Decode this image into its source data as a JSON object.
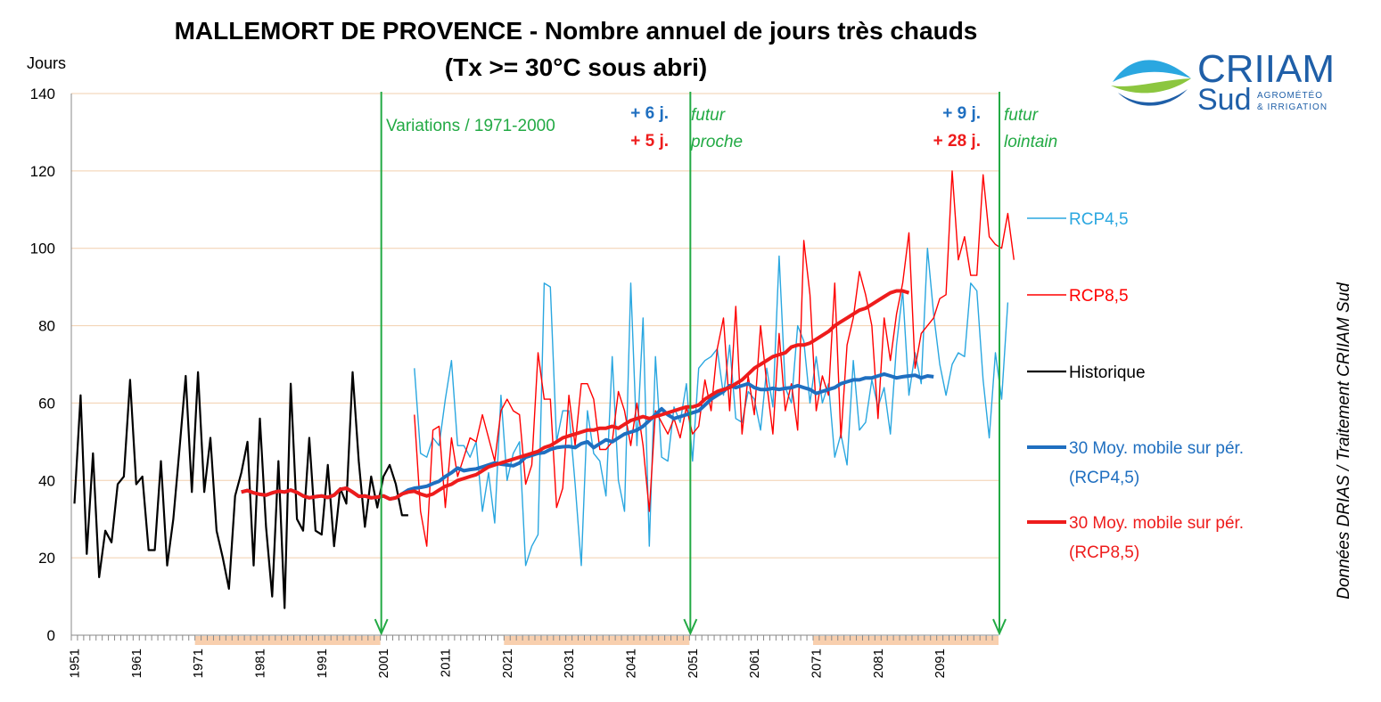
{
  "chart_data": {
    "type": "line",
    "title": "MALLEMORT DE PROVENCE - Nombre annuel de jours très chauds",
    "subtitle": "(Tx >= 30°C sous abri)",
    "ylabel": "Jours",
    "ylim": [
      0,
      140
    ],
    "yticks": [
      0,
      20,
      40,
      60,
      80,
      100,
      120,
      140
    ],
    "xlim": [
      1950.5,
      2100.5
    ],
    "xticks": [
      1951,
      1961,
      1971,
      1981,
      1991,
      2001,
      2011,
      2021,
      2031,
      2041,
      2051,
      2061,
      2071,
      2081,
      2091
    ],
    "grid": "horizontal",
    "legend_position": "right",
    "reference_periods": [
      [
        1971,
        2000
      ],
      [
        2021,
        2050
      ],
      [
        2071,
        2100
      ]
    ],
    "period_markers": [
      2001,
      2051,
      2101
    ],
    "series": [
      {
        "name": "Historique",
        "color": "#000000",
        "width": 2.2,
        "x_start": 1951,
        "values": [
          34,
          62,
          21,
          47,
          15,
          27,
          24,
          39,
          41,
          66,
          39,
          41,
          22,
          22,
          45,
          18,
          30,
          48,
          67,
          37,
          68,
          37,
          51,
          27,
          20,
          12,
          36,
          42,
          50,
          18,
          56,
          28,
          10,
          45,
          7,
          65,
          30,
          27,
          51,
          27,
          26,
          44,
          23,
          38,
          34,
          68,
          45,
          28,
          41,
          33,
          41,
          44,
          39,
          31,
          31
        ]
      },
      {
        "name": "RCP4,5",
        "color": "#2aa7e0",
        "width": 1.4,
        "x_start": 2006,
        "values": [
          69,
          47,
          46,
          51,
          49,
          61,
          71,
          49,
          49,
          46,
          50,
          32,
          42,
          29,
          62,
          40,
          47,
          50,
          18,
          23,
          26,
          91,
          90,
          50,
          58,
          58,
          39,
          18,
          58,
          47,
          45,
          36,
          72,
          40,
          32,
          91,
          49,
          82,
          23,
          72,
          46,
          45,
          59,
          55,
          65,
          45,
          69,
          71,
          72,
          74,
          62,
          75,
          56,
          55,
          63,
          61,
          53,
          69,
          59,
          98,
          64,
          60,
          80,
          76,
          60,
          72,
          60,
          65,
          46,
          52,
          44,
          71,
          53,
          55,
          66,
          59,
          64,
          52,
          75,
          89,
          62,
          73,
          65,
          100,
          83,
          70,
          62,
          70,
          73,
          72,
          91,
          89,
          66,
          51,
          73,
          61,
          86
        ]
      },
      {
        "name": "RCP8,5",
        "color": "#ff0000",
        "width": 1.4,
        "x_start": 2006,
        "values": [
          57,
          32,
          23,
          53,
          54,
          33,
          51,
          41,
          46,
          51,
          50,
          57,
          51,
          45,
          58,
          61,
          58,
          57,
          39,
          44,
          73,
          61,
          61,
          33,
          38,
          62,
          49,
          65,
          65,
          61,
          48,
          48,
          50,
          63,
          58,
          49,
          60,
          49,
          32,
          58,
          55,
          52,
          56,
          51,
          59,
          52,
          54,
          66,
          58,
          74,
          82,
          58,
          85,
          52,
          67,
          57,
          80,
          65,
          52,
          78,
          58,
          65,
          53,
          102,
          88,
          58,
          67,
          62,
          91,
          51,
          75,
          82,
          94,
          88,
          80,
          56,
          82,
          71,
          83,
          91,
          104,
          69,
          78,
          80,
          82,
          87,
          88,
          120,
          97,
          103,
          93,
          93,
          119,
          103,
          101,
          100,
          109,
          97
        ]
      },
      {
        "name": "30 Moy. mobile sur pér. (RCP4,5)",
        "color": "#1f6fc0",
        "width": 4,
        "x_start": 1978,
        "values": [
          37,
          37.4,
          36.8,
          36.4,
          36.2,
          36.8,
          37.2,
          37.0,
          37.5,
          36.9,
          36.0,
          35.5,
          35.8,
          36.0,
          35.6,
          36.2,
          37.7,
          38.0,
          37.0,
          35.9,
          36.0,
          35.5,
          35.7,
          36.0,
          35.2,
          35.5,
          36.5,
          37.5,
          38.0,
          38.2,
          38.5,
          39.2,
          39.8,
          41.0,
          42.0,
          43.2,
          42.5,
          42.8,
          43.0,
          43.5,
          44.0,
          44.5,
          44.2,
          44.0,
          43.8,
          44.5,
          46.0,
          46.5,
          47.0,
          47.2,
          48.0,
          48.5,
          48.7,
          48.8,
          48.5,
          49.5,
          50.0,
          48.5,
          49.5,
          50.5,
          50.0,
          51.0,
          52.0,
          52.5,
          53.0,
          54.0,
          55.5,
          57.0,
          58.5,
          57.0,
          56.0,
          56.5,
          57.0,
          57.5,
          58.0,
          59.5,
          61.0,
          62.0,
          63.0,
          64.5,
          64.0,
          64.5,
          65.0,
          64.0,
          63.5,
          63.5,
          63.8,
          63.5,
          63.8,
          64.0,
          64.5,
          64.0,
          63.5,
          62.5,
          63.0,
          63.5,
          64.0,
          65.0,
          65.5,
          66.0,
          66.0,
          66.5,
          66.5,
          67.0,
          67.5,
          67.0,
          66.5,
          66.8,
          67.0,
          67.2,
          66.5,
          67.0,
          66.8
        ]
      },
      {
        "name": "30 Moy. mobile sur pér. (RCP8,5)",
        "color": "#ee1c1c",
        "width": 4,
        "x_start": 1978,
        "values": [
          37,
          37.4,
          36.8,
          36.4,
          36.2,
          36.8,
          37.2,
          37.0,
          37.5,
          36.9,
          36.0,
          35.5,
          35.8,
          36.0,
          35.6,
          36.2,
          37.7,
          38.0,
          37.0,
          35.9,
          36.0,
          35.5,
          35.7,
          36.0,
          35.2,
          35.5,
          36.5,
          37.0,
          37.2,
          36.5,
          36.0,
          36.5,
          37.5,
          38.5,
          39.0,
          40.0,
          40.5,
          41.0,
          41.5,
          42.5,
          43.5,
          44.0,
          44.5,
          45.0,
          45.5,
          46.0,
          46.5,
          47.0,
          47.5,
          48.5,
          49.0,
          50.0,
          51.0,
          51.5,
          52.0,
          52.5,
          53.0,
          53.0,
          53.5,
          53.5,
          54.0,
          53.5,
          54.5,
          55.5,
          56.0,
          56.5,
          56.0,
          56.5,
          57.0,
          57.5,
          58.0,
          58.5,
          59.0,
          59.0,
          59.5,
          61.0,
          62.0,
          63.0,
          63.5,
          64.0,
          65.0,
          66.0,
          67.5,
          69.0,
          70.0,
          71.0,
          72.0,
          72.5,
          73.0,
          74.5,
          75.0,
          75.0,
          75.5,
          76.5,
          77.5,
          78.5,
          80.0,
          81.0,
          82.0,
          83.0,
          84.0,
          84.5,
          85.5,
          86.5,
          87.5,
          88.5,
          89.0,
          89.0,
          88.5
        ]
      }
    ],
    "annotations": [
      {
        "text": "Variations / 1971-2000",
        "color": "#22aa44",
        "style": "normal"
      },
      {
        "text": "+ 6 j.",
        "color": "#1f6fc0",
        "style": "bold"
      },
      {
        "text": "+ 5 j.",
        "color": "#ee1c1c",
        "style": "bold"
      },
      {
        "text": "futur",
        "color": "#22aa44",
        "style": "italic"
      },
      {
        "text": "proche",
        "color": "#22aa44",
        "style": "italic"
      },
      {
        "text": "+ 9 j.",
        "color": "#1f6fc0",
        "style": "bold"
      },
      {
        "text": "+ 28 j.",
        "color": "#ee1c1c",
        "style": "bold"
      },
      {
        "text": "futur",
        "color": "#22aa44",
        "style": "italic"
      },
      {
        "text": "lointain",
        "color": "#22aa44",
        "style": "italic"
      }
    ],
    "legend": [
      {
        "label": "RCP4,5",
        "color": "#2aa7e0",
        "width": 1.4
      },
      {
        "label": "RCP8,5",
        "color": "#ff0000",
        "width": 1.4
      },
      {
        "label": "Historique",
        "color": "#000000",
        "width": 2.2
      },
      {
        "label": "30 Moy. mobile sur pér.",
        "label2": "(RCP4,5)",
        "color": "#1f6fc0",
        "width": 4
      },
      {
        "label": "30 Moy. mobile sur pér.",
        "label2": "(RCP8,5)",
        "color": "#ee1c1c",
        "width": 4
      }
    ],
    "source": "Données DRIAS / Traitement CRIIAM Sud"
  },
  "logo": {
    "name": "CRIIAM",
    "sub": "Sud",
    "tag1": "AGROMÉTÉO",
    "tag2": "& IRRIGATION"
  },
  "colors": {
    "grid": "#f2cfae",
    "period_band": "#f8cfae",
    "period_marker": "#22aa44"
  }
}
